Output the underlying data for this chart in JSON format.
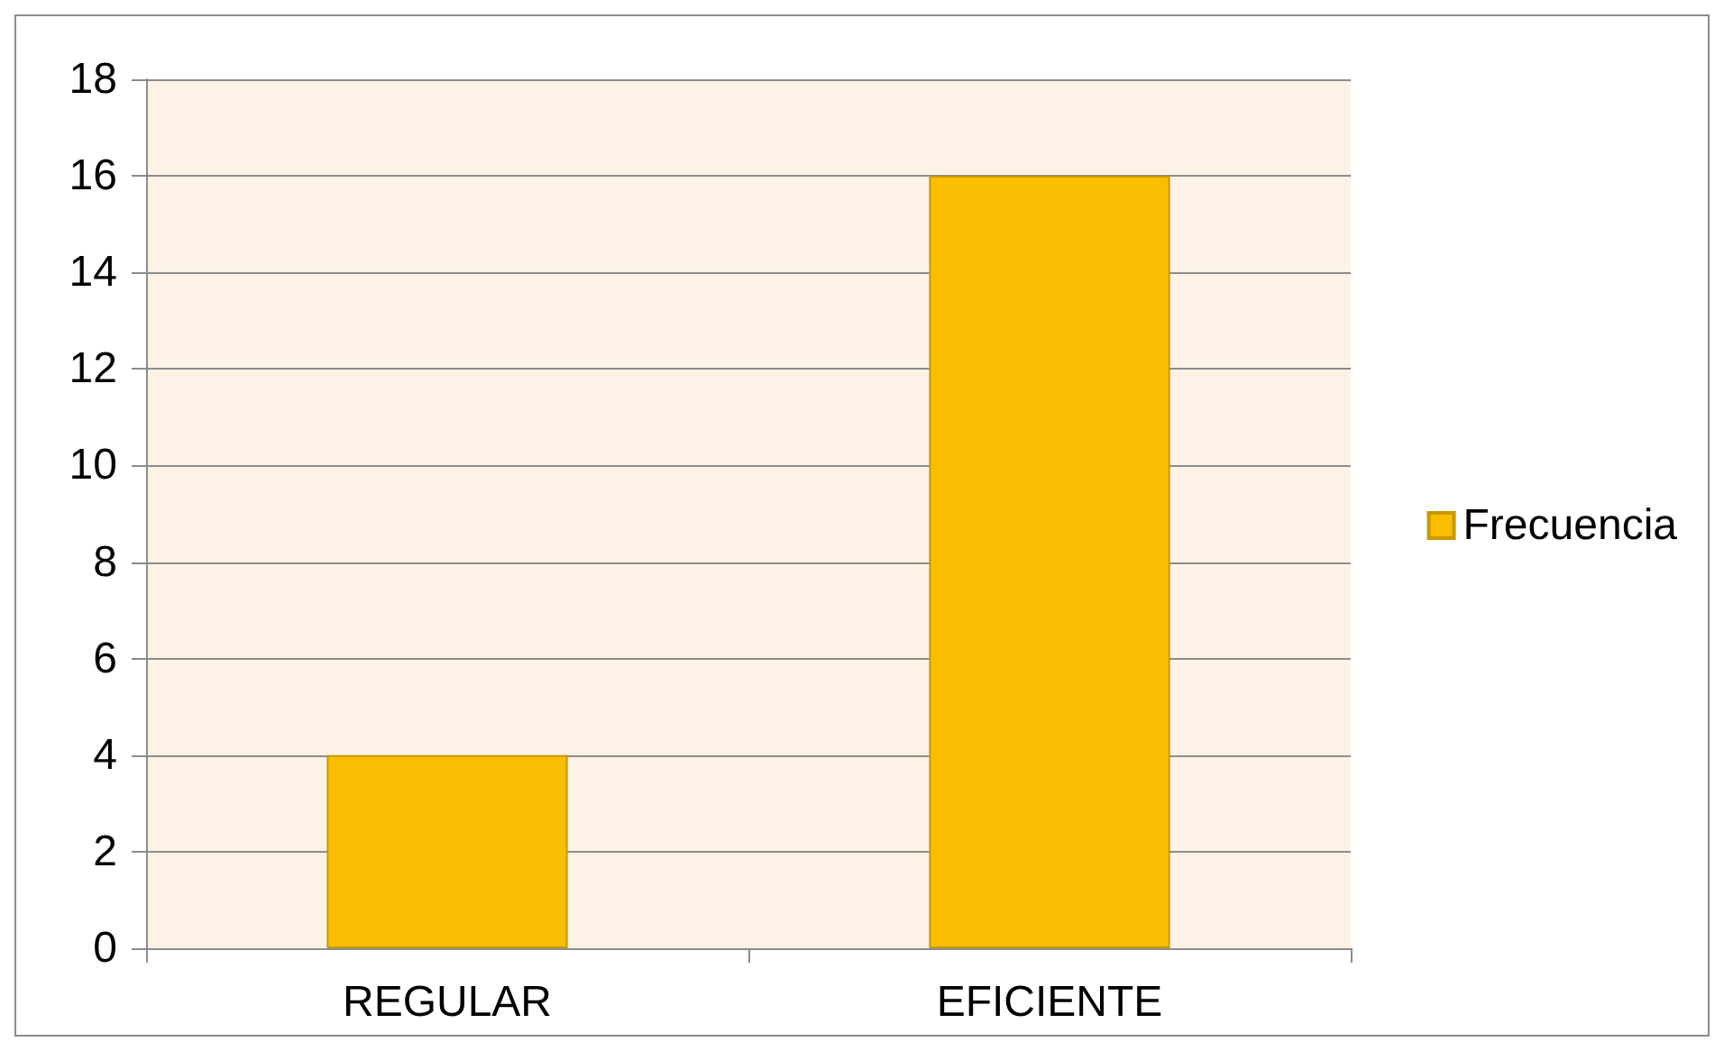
{
  "chart_data": {
    "type": "bar",
    "categories": [
      "REGULAR",
      "EFICIENTE"
    ],
    "series": [
      {
        "name": "Frecuencia",
        "color": "#f9be00",
        "values": [
          4,
          16
        ]
      }
    ],
    "ylim": [
      0,
      18
    ],
    "yticks": [
      0,
      2,
      4,
      6,
      8,
      10,
      12,
      14,
      16,
      18
    ],
    "grid": "y",
    "legend": "right"
  }
}
